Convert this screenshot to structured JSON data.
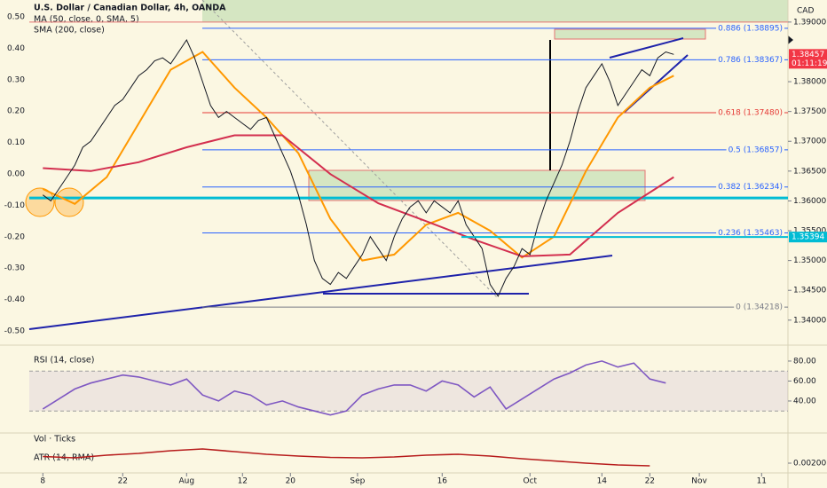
{
  "chart_data": [
    {
      "type": "line",
      "title": "U.S. Dollar / Canadian Dollar, 4h, OANDA",
      "currency": "CAD",
      "color": "#131722",
      "x": [
        0,
        1,
        2,
        3,
        4,
        5,
        6,
        7,
        8,
        9,
        10,
        11,
        12,
        13,
        14,
        15,
        16,
        17,
        18,
        19,
        20,
        21,
        22,
        23,
        24,
        25,
        26,
        27,
        28,
        29,
        30,
        31,
        32,
        33,
        34,
        35,
        36,
        37,
        38,
        39,
        40,
        41,
        42,
        43,
        44,
        45,
        46,
        47,
        48,
        49,
        50,
        51,
        52,
        53,
        54,
        55,
        56,
        57,
        58,
        59,
        60,
        61,
        62,
        63,
        64,
        65,
        66,
        67,
        68,
        69,
        70,
        71,
        72,
        73,
        74,
        75,
        76,
        77,
        78,
        79
      ],
      "values": [
        1.361,
        1.36,
        1.362,
        1.364,
        1.366,
        1.369,
        1.37,
        1.372,
        1.374,
        1.376,
        1.377,
        1.379,
        1.381,
        1.382,
        1.3835,
        1.384,
        1.383,
        1.385,
        1.387,
        1.384,
        1.38,
        1.376,
        1.374,
        1.375,
        1.374,
        1.373,
        1.372,
        1.3735,
        1.374,
        1.371,
        1.368,
        1.365,
        1.361,
        1.356,
        1.35,
        1.347,
        1.346,
        1.348,
        1.347,
        1.349,
        1.351,
        1.354,
        1.352,
        1.35,
        1.354,
        1.357,
        1.359,
        1.36,
        1.358,
        1.36,
        1.359,
        1.358,
        1.36,
        1.356,
        1.354,
        1.352,
        1.346,
        1.344,
        1.347,
        1.349,
        1.352,
        1.351,
        1.356,
        1.36,
        1.363,
        1.366,
        1.37,
        1.375,
        1.379,
        1.381,
        1.383,
        1.38,
        1.376,
        1.378,
        1.38,
        1.382,
        1.381,
        1.384,
        1.385,
        1.38457
      ],
      "series": [
        {
          "name": "MA (50, close, 0, SMA, 5)",
          "color": "#ff9800",
          "x": [
            0,
            4,
            8,
            12,
            16,
            20,
            24,
            28,
            32,
            36,
            40,
            44,
            48,
            52,
            56,
            60,
            64,
            68,
            72,
            76,
            79
          ],
          "values": [
            1.362,
            1.3595,
            1.364,
            1.373,
            1.382,
            1.385,
            1.379,
            1.374,
            1.368,
            1.357,
            1.35,
            1.351,
            1.356,
            1.358,
            1.355,
            1.3505,
            1.354,
            1.365,
            1.374,
            1.379,
            1.381
          ]
        },
        {
          "name": "SMA (200, close)",
          "color": "#d32f4f",
          "x": [
            0,
            6,
            12,
            18,
            24,
            30,
            36,
            42,
            48,
            54,
            60,
            66,
            72,
            79
          ],
          "values": [
            1.3655,
            1.365,
            1.3665,
            1.369,
            1.371,
            1.371,
            1.3645,
            1.3596,
            1.3566,
            1.3535,
            1.3507,
            1.351,
            1.358,
            1.364
          ]
        }
      ],
      "xlim": [
        -1.7,
        93.3
      ],
      "xticks": [
        {
          "value": 0,
          "label": "8"
        },
        {
          "value": 10,
          "label": "22"
        },
        {
          "value": 18,
          "label": "Aug"
        },
        {
          "value": 25,
          "label": "12"
        },
        {
          "value": 31,
          "label": "20"
        },
        {
          "value": 39.4,
          "label": "Sep"
        },
        {
          "value": 50,
          "label": "16"
        },
        {
          "value": 61,
          "label": "Oct"
        },
        {
          "value": 70,
          "label": "14"
        },
        {
          "value": 76,
          "label": "22"
        },
        {
          "value": 82.2,
          "label": "Nov"
        },
        {
          "value": 90,
          "label": "11"
        }
      ],
      "ylim": [
        1.3364,
        1.3937
      ],
      "yticks": [
        {
          "value": 1.39,
          "label": "1.39000"
        },
        {
          "value": 1.38,
          "label": "1.38000"
        },
        {
          "value": 1.375,
          "label": "1.37500"
        },
        {
          "value": 1.37,
          "label": "1.37000"
        },
        {
          "value": 1.365,
          "label": "1.36500"
        },
        {
          "value": 1.36,
          "label": "1.36000"
        },
        {
          "value": 1.355,
          "label": "1.35500"
        },
        {
          "value": 1.35,
          "label": "1.35000"
        },
        {
          "value": 1.345,
          "label": "1.34500"
        },
        {
          "value": 1.34,
          "label": "1.34000"
        }
      ],
      "y2lim": [
        -0.534,
        0.5537
      ],
      "y2ticks": [
        {
          "value": 0.5,
          "label": "0.50"
        },
        {
          "value": 0.4,
          "label": "0.40"
        },
        {
          "value": 0.3,
          "label": "0.30"
        },
        {
          "value": 0.2,
          "label": "0.20"
        },
        {
          "value": 0.1,
          "label": "0.10"
        },
        {
          "value": 0,
          "label": "0.00"
        },
        {
          "value": -0.1,
          "label": "-0.10"
        },
        {
          "value": -0.2,
          "label": "-0.20"
        },
        {
          "value": -0.3,
          "label": "-0.30"
        },
        {
          "value": -0.4,
          "label": "-0.40"
        },
        {
          "value": -0.5,
          "label": "-0.50"
        }
      ],
      "fib_levels": [
        {
          "label": "0.886 (1.38895)",
          "value": 1.38895,
          "color": "#2962ff"
        },
        {
          "label": "0.786 (1.38367)",
          "value": 1.38367,
          "color": "#2962ff"
        },
        {
          "label": "0.618 (1.37480)",
          "value": 1.3748,
          "color": "#e53935"
        },
        {
          "label": "0.5 (1.36857)",
          "value": 1.36857,
          "color": "#2962ff"
        },
        {
          "label": "0.382 (1.36234)",
          "value": 1.36234,
          "color": "#2962ff"
        },
        {
          "label": "0.236 (1.35463)",
          "value": 1.35463,
          "color": "#2962ff"
        },
        {
          "label": "0 (1.34218)",
          "value": 1.34218,
          "color": "#787b86"
        }
      ],
      "hlines": [
        {
          "value": 1.39,
          "color": "#e57373"
        },
        {
          "value": 1.3605,
          "color": "#00bcd4"
        }
      ],
      "price_tags": [
        {
          "label": "1.38457",
          "value": 1.38457,
          "color": "#f23645"
        },
        {
          "label": "1.35394",
          "value": 1.35394,
          "color": "#00bcd4"
        }
      ],
      "countdown": "01:11:19"
    },
    {
      "type": "line",
      "title": "RSI (14, close)",
      "color": "#7e57c2",
      "x": [
        0,
        2,
        4,
        6,
        8,
        10,
        12,
        14,
        16,
        18,
        20,
        22,
        24,
        26,
        28,
        30,
        32,
        34,
        36,
        38,
        40,
        42,
        44,
        46,
        48,
        50,
        52,
        54,
        56,
        58,
        60,
        62,
        64,
        66,
        68,
        70,
        72,
        74,
        76,
        78
      ],
      "values": [
        32,
        42,
        52,
        58,
        62,
        66,
        64,
        60,
        56,
        62,
        46,
        40,
        50,
        46,
        36,
        40,
        34,
        30,
        26,
        30,
        46,
        52,
        56,
        56,
        50,
        60,
        56,
        44,
        54,
        32,
        42,
        52,
        62,
        68,
        76,
        80,
        74,
        78,
        62,
        58
      ],
      "ylim": [
        12.4,
        92.4
      ],
      "yticks": [
        {
          "value": 80,
          "label": "80.00"
        },
        {
          "value": 60,
          "label": "60.00"
        },
        {
          "value": 40,
          "label": "40.00"
        }
      ],
      "band": [
        30,
        70
      ]
    },
    {
      "type": "bar",
      "title": "Vol · Ticks"
    },
    {
      "type": "line",
      "title": "ATR (14, RMA)",
      "color": "#b71c1c",
      "x": [
        0,
        4,
        8,
        12,
        16,
        20,
        24,
        28,
        32,
        36,
        40,
        44,
        48,
        52,
        56,
        60,
        64,
        68,
        72,
        76
      ],
      "values": [
        0.00215,
        0.00212,
        0.00218,
        0.00222,
        0.00228,
        0.00232,
        0.00226,
        0.0022,
        0.00216,
        0.00213,
        0.00212,
        0.00214,
        0.00218,
        0.0022,
        0.00216,
        0.0021,
        0.00205,
        0.002,
        0.00196,
        0.00194
      ],
      "ylim": [
        0.0018,
        0.00244
      ],
      "yticks": [
        {
          "value": 0.002,
          "label": "0.00200"
        }
      ]
    }
  ]
}
